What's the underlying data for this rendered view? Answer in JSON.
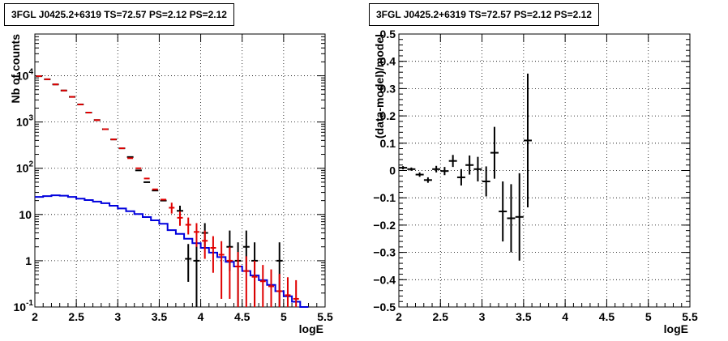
{
  "chart_data": [
    {
      "type": "line",
      "title": "3FGL J0425.2+6319 TS=72.57 PS=2.12 PS=2.12",
      "xlabel": "logE",
      "ylabel": "Nb of counts",
      "xlim": [
        2,
        5.5
      ],
      "ylim": [
        0.1,
        80000
      ],
      "yscale": "log",
      "grid": true,
      "x_ticks": [
        "2",
        "2.5",
        "3",
        "3.5",
        "4",
        "4.5",
        "5",
        "5.5"
      ],
      "y_ticks": [
        {
          "value": 0.1,
          "label": "10",
          "sup": "-1"
        },
        {
          "value": 1,
          "label": "1",
          "sup": ""
        },
        {
          "value": 10,
          "label": "10",
          "sup": ""
        },
        {
          "value": 100,
          "label": "10",
          "sup": "2"
        },
        {
          "value": 1000,
          "label": "10",
          "sup": "3"
        },
        {
          "value": 10000,
          "label": "10",
          "sup": "4"
        }
      ],
      "series": [
        {
          "role": "model",
          "color": "#e00000",
          "x": [
            2.05,
            2.15,
            2.25,
            2.35,
            2.45,
            2.55,
            2.65,
            2.75,
            2.85,
            2.95,
            3.05,
            3.15,
            3.25,
            3.35,
            3.45,
            3.55,
            3.65,
            3.75,
            3.85,
            3.95,
            4.05,
            4.15,
            4.25,
            4.35,
            4.45,
            4.55,
            4.65,
            4.75,
            4.85,
            4.95,
            5.05,
            5.15
          ],
          "y": [
            9800,
            8400,
            6500,
            4800,
            3500,
            2400,
            1600,
            1100,
            700,
            420,
            270,
            165,
            100,
            60,
            35,
            21,
            14,
            8.5,
            6,
            4.2,
            2.7,
            1.9,
            1.35,
            1.0,
            0.75,
            0.6,
            0.45,
            0.36,
            0.28,
            0.22,
            0.18,
            0.15
          ],
          "err_low": [
            0,
            0,
            0,
            0,
            0,
            0,
            0,
            0,
            0,
            0,
            0,
            0,
            0,
            0,
            0,
            0,
            3.5,
            2.8,
            2.3,
            2.2,
            1.6,
            1.35,
            1.2,
            0.85,
            0.66,
            0.52,
            0.4,
            0.33,
            0.26,
            0.21,
            0.17,
            0.14
          ],
          "err_high": [
            0,
            0,
            0,
            0,
            0,
            0,
            0,
            0,
            0,
            0,
            0,
            0,
            0,
            0,
            0,
            0,
            4,
            3.2,
            2.6,
            2.3,
            1.8,
            1.5,
            1.3,
            1.0,
            0.8,
            0.65,
            0.55,
            0.45,
            0.37,
            0.3,
            0.26,
            0.23
          ]
        },
        {
          "role": "data",
          "color": "#000000",
          "x": [
            2.05,
            2.15,
            2.25,
            2.35,
            2.45,
            2.55,
            2.65,
            2.75,
            2.85,
            2.95,
            3.05,
            3.15,
            3.25,
            3.35,
            3.45,
            3.55,
            3.75,
            3.85,
            3.95,
            4.05,
            4.35,
            4.45,
            4.55,
            4.65,
            4.95
          ],
          "y": [
            9800,
            8400,
            6500,
            4800,
            3500,
            2400,
            1600,
            1100,
            700,
            420,
            270,
            175,
            90,
            50,
            33,
            20,
            12,
            1.1,
            1.0,
            4,
            2,
            1,
            2,
            1,
            1
          ],
          "err_low": [
            0,
            0,
            0,
            0,
            0,
            0,
            0,
            0,
            0,
            0,
            0,
            0,
            0,
            0,
            0,
            0,
            3.5,
            0.75,
            0.9,
            2,
            1.4,
            0.9,
            1.4,
            0.9,
            0.9
          ],
          "err_high": [
            0,
            0,
            0,
            0,
            0,
            0,
            0,
            0,
            0,
            0,
            0,
            0,
            0,
            0,
            0,
            0,
            3.5,
            1.2,
            1.5,
            2.5,
            2.5,
            1.5,
            2.5,
            1.5,
            1.5
          ]
        },
        {
          "role": "source",
          "color": "#0000dd",
          "step": true,
          "x": [
            2.05,
            2.15,
            2.25,
            2.35,
            2.45,
            2.55,
            2.65,
            2.75,
            2.85,
            2.95,
            3.05,
            3.15,
            3.25,
            3.35,
            3.45,
            3.55,
            3.65,
            3.75,
            3.85,
            3.95,
            4.05,
            4.15,
            4.25,
            4.35,
            4.45,
            4.55,
            4.65,
            4.75,
            4.85,
            4.95,
            5.05,
            5.15,
            5.25
          ],
          "y": [
            24,
            25,
            26,
            25.5,
            24,
            22,
            20.5,
            19,
            17.5,
            15.5,
            13.5,
            11.8,
            10.2,
            8.8,
            7.5,
            6.3,
            4.6,
            3.8,
            3.0,
            2.4,
            1.9,
            1.5,
            1.2,
            0.95,
            0.75,
            0.6,
            0.48,
            0.38,
            0.3,
            0.22,
            0.17,
            0.13,
            0.1
          ]
        }
      ]
    },
    {
      "type": "scatter",
      "title": "3FGL J0425.2+6319 TS=72.57 PS=2.12 PS=2.12",
      "xlabel": "logE",
      "ylabel": "(data-model)/model",
      "xlim": [
        2,
        5.5
      ],
      "ylim": [
        -0.5,
        0.5
      ],
      "grid": true,
      "x_ticks": [
        "2",
        "2.5",
        "3",
        "3.5",
        "4",
        "4.5",
        "5",
        "5.5"
      ],
      "y_ticks": [
        "−0.5",
        "−0.4",
        "−0.3",
        "−0.2",
        "−0.1",
        "0",
        "0.1",
        "0.2",
        "0.3",
        "0.4",
        "0.5"
      ],
      "y_tick_values": [
        -0.5,
        -0.4,
        -0.3,
        -0.2,
        -0.1,
        0,
        0.1,
        0.2,
        0.3,
        0.4,
        0.5
      ],
      "series": [
        {
          "color": "#000000",
          "x": [
            2.05,
            2.15,
            2.25,
            2.35,
            2.45,
            2.55,
            2.65,
            2.75,
            2.85,
            2.95,
            3.05,
            3.15,
            3.25,
            3.35,
            3.45,
            3.55
          ],
          "y": [
            0.01,
            0.005,
            -0.015,
            -0.035,
            0.005,
            -0.002,
            0.035,
            -0.025,
            0.02,
            0.005,
            -0.04,
            0.065,
            -0.15,
            -0.175,
            -0.17,
            0.11
          ],
          "err": [
            0.006,
            0.006,
            0.008,
            0.01,
            0.012,
            0.015,
            0.022,
            0.03,
            0.035,
            0.045,
            0.055,
            0.095,
            0.11,
            0.125,
            0.16,
            0.245
          ]
        }
      ]
    }
  ]
}
